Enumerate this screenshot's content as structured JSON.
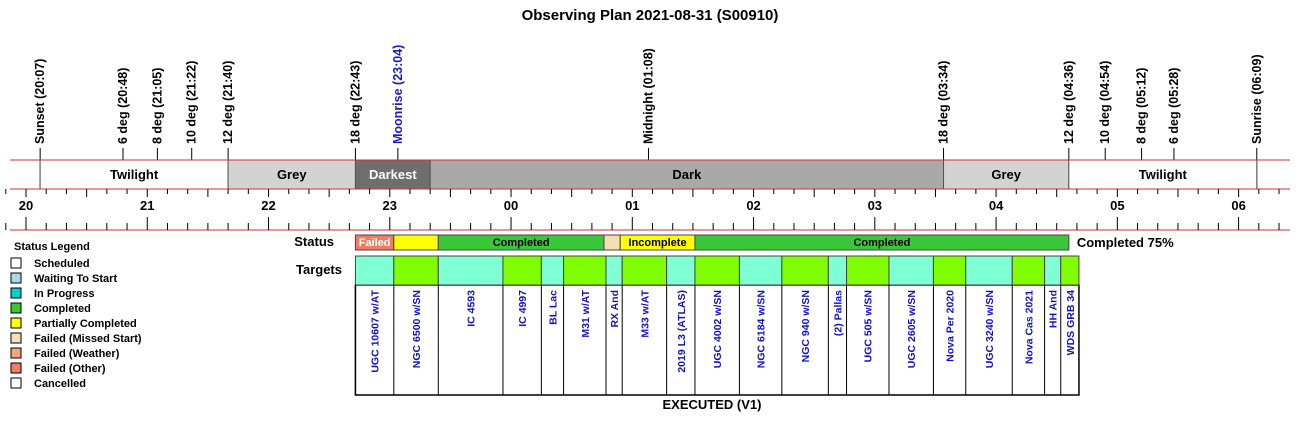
{
  "chart_data": {
    "type": "timeline",
    "title": "Observing Plan 2021-08-31 (S00910)",
    "time_axis": {
      "start": "19:50",
      "end": "06:22",
      "hour_labels": [
        "20",
        "21",
        "22",
        "23",
        "00",
        "01",
        "02",
        "03",
        "04",
        "05",
        "06"
      ]
    },
    "events": [
      {
        "label": "Sunset (20:07)",
        "time": "20:07",
        "color": "#000000"
      },
      {
        "label": "6 deg (20:48)",
        "time": "20:48",
        "color": "#000000"
      },
      {
        "label": "8 deg (21:05)",
        "time": "21:05",
        "color": "#000000"
      },
      {
        "label": "10 deg (21:22)",
        "time": "21:22",
        "color": "#000000"
      },
      {
        "label": "12 deg (21:40)",
        "time": "21:40",
        "color": "#000000"
      },
      {
        "label": "18 deg (22:43)",
        "time": "22:43",
        "color": "#000000"
      },
      {
        "label": "Moonrise (23:04)",
        "time": "23:04",
        "color": "#1a1acc"
      },
      {
        "label": "Midnight (01:08)",
        "time": "01:08",
        "color": "#000000"
      },
      {
        "label": "18 deg (03:34)",
        "time": "03:34",
        "color": "#000000"
      },
      {
        "label": "12 deg (04:36)",
        "time": "04:36",
        "color": "#000000"
      },
      {
        "label": "10 deg (04:54)",
        "time": "04:54",
        "color": "#000000"
      },
      {
        "label": "8 deg (05:12)",
        "time": "05:12",
        "color": "#000000"
      },
      {
        "label": "6 deg (05:28)",
        "time": "05:28",
        "color": "#000000"
      },
      {
        "label": "Sunrise (06:09)",
        "time": "06:09",
        "color": "#000000"
      }
    ],
    "bands": [
      {
        "label": "Twilight",
        "start": "20:07",
        "end": "21:40",
        "fill": "#ffffff",
        "text_color": "#000000"
      },
      {
        "label": "Grey",
        "start": "21:40",
        "end": "22:43",
        "fill": "#d3d3d3",
        "text_color": "#000000"
      },
      {
        "label": "Darkest",
        "start": "22:43",
        "end": "23:20",
        "fill": "#6e6e6e",
        "text_color": "#ffffff"
      },
      {
        "label": "Dark",
        "start": "23:20",
        "end": "03:34",
        "fill": "#a9a9a9",
        "text_color": "#000000"
      },
      {
        "label": "Grey",
        "start": "03:34",
        "end": "04:36",
        "fill": "#d3d3d3",
        "text_color": "#000000"
      },
      {
        "label": "Twilight",
        "start": "04:36",
        "end": "06:09",
        "fill": "#ffffff",
        "text_color": "#000000"
      }
    ],
    "status_row_label": "Status",
    "status_segments": [
      {
        "label": "Failed",
        "start": "22:43",
        "end": "23:02",
        "fill": "#f47c64",
        "text_color": "#ffffff"
      },
      {
        "label": "",
        "start": "23:02",
        "end": "23:24",
        "fill": "#ffff00",
        "text_color": "#000000"
      },
      {
        "label": "Completed",
        "start": "23:24",
        "end": "00:46",
        "fill": "#3ac83a",
        "text_color": "#000000"
      },
      {
        "label": "",
        "start": "00:46",
        "end": "00:54",
        "fill": "#f5deb3",
        "text_color": "#000000"
      },
      {
        "label": "Incomplete",
        "start": "00:54",
        "end": "01:31",
        "fill": "#ffff00",
        "text_color": "#000000"
      },
      {
        "label": "Completed",
        "start": "01:31",
        "end": "04:36",
        "fill": "#3ac83a",
        "text_color": "#000000"
      }
    ],
    "status_summary": "Completed 75%",
    "targets_row_label": "Targets",
    "targets": [
      {
        "name": "UGC 10607 w/AT",
        "start": "22:43",
        "end": "23:02",
        "fill": "#7fffd4"
      },
      {
        "name": "NGC 6500 w/SN",
        "start": "23:02",
        "end": "23:24",
        "fill": "#7fff00"
      },
      {
        "name": "IC 4593",
        "start": "23:24",
        "end": "23:56",
        "fill": "#7fffd4"
      },
      {
        "name": "IC 4997",
        "start": "23:56",
        "end": "00:15",
        "fill": "#7fff00"
      },
      {
        "name": "BL Lac",
        "start": "00:15",
        "end": "00:26",
        "fill": "#7fffd4"
      },
      {
        "name": "M31 w/AT",
        "start": "00:26",
        "end": "00:47",
        "fill": "#7fff00"
      },
      {
        "name": "RX And",
        "start": "00:47",
        "end": "00:55",
        "fill": "#7fffd4"
      },
      {
        "name": "M33 w/AT",
        "start": "00:55",
        "end": "01:17",
        "fill": "#7fff00"
      },
      {
        "name": "2019 L3 (ATLAS)",
        "start": "01:17",
        "end": "01:31",
        "fill": "#7fffd4"
      },
      {
        "name": "UGC 4002 w/SN",
        "start": "01:31",
        "end": "01:53",
        "fill": "#7fff00"
      },
      {
        "name": "NGC 6184 w/SN",
        "start": "01:53",
        "end": "02:14",
        "fill": "#7fffd4"
      },
      {
        "name": "NGC 940 w/SN",
        "start": "02:14",
        "end": "02:37",
        "fill": "#7fff00"
      },
      {
        "name": "(2) Pallas",
        "start": "02:37",
        "end": "02:46",
        "fill": "#7fffd4"
      },
      {
        "name": "UGC 505 w/SN",
        "start": "02:46",
        "end": "03:07",
        "fill": "#7fff00"
      },
      {
        "name": "UGC 2605 w/SN",
        "start": "03:07",
        "end": "03:29",
        "fill": "#7fffd4"
      },
      {
        "name": "Nova Per 2020",
        "start": "03:29",
        "end": "03:45",
        "fill": "#7fff00"
      },
      {
        "name": "UGC 3240 w/SN",
        "start": "03:45",
        "end": "04:08",
        "fill": "#7fffd4"
      },
      {
        "name": "Nova Cas 2021",
        "start": "04:08",
        "end": "04:24",
        "fill": "#7fff00"
      },
      {
        "name": "HH And",
        "start": "04:24",
        "end": "04:32",
        "fill": "#7fffd4"
      },
      {
        "name": "WDS GRB 34",
        "start": "04:32",
        "end": "04:41",
        "fill": "#7fff00"
      }
    ],
    "plan_label": "EXECUTED (V1)",
    "legend": {
      "title": "Status Legend",
      "items": [
        {
          "label": "Scheduled",
          "color": "#ffffff"
        },
        {
          "label": "Waiting To Start",
          "color": "#add8e6"
        },
        {
          "label": "In Progress",
          "color": "#00ced1"
        },
        {
          "label": "Completed",
          "color": "#3ac83a"
        },
        {
          "label": "Partially Completed",
          "color": "#ffff00"
        },
        {
          "label": "Failed (Missed Start)",
          "color": "#f5deb3"
        },
        {
          "label": "Failed (Weather)",
          "color": "#f4a67a"
        },
        {
          "label": "Failed (Other)",
          "color": "#f47c64"
        },
        {
          "label": "Cancelled",
          "color": "#ffffff"
        }
      ]
    },
    "colors": {
      "axis_line": "#cc3333",
      "tick": "#000000"
    }
  }
}
